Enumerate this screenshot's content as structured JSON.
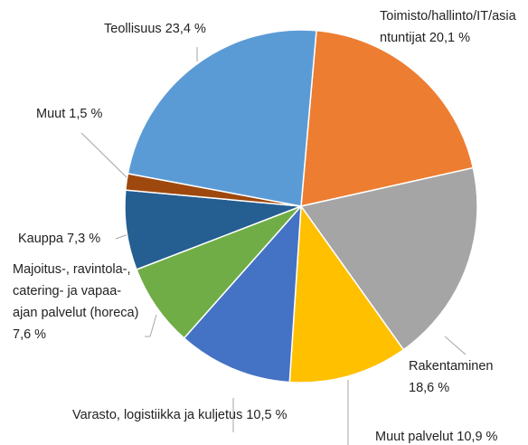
{
  "chart_data": {
    "type": "pie",
    "categories": [
      "Toimisto/hallinto/IT/asiantuntijat",
      "Rakentaminen",
      "Muut palvelut",
      "Varasto, logistiikka ja kuljetus",
      "Majoitus-, ravintola-, catering- ja vapaa-ajan palvelut (horeca)",
      "Kauppa",
      "Muut",
      "Teollisuus"
    ],
    "values": [
      20.1,
      18.6,
      10.9,
      10.5,
      7.6,
      7.3,
      1.5,
      23.4
    ],
    "value_labels": [
      "20,1 %",
      "18,6 %",
      "10,9 %",
      "10,5 %",
      "7,6 %",
      "7,3 %",
      "1,5 %",
      "23,4 %"
    ],
    "colors": [
      "#ED7D31",
      "#A5A5A5",
      "#FFC000",
      "#4472C4",
      "#70AD47",
      "#255E91",
      "#9E480E",
      "#5B9BD5"
    ]
  }
}
